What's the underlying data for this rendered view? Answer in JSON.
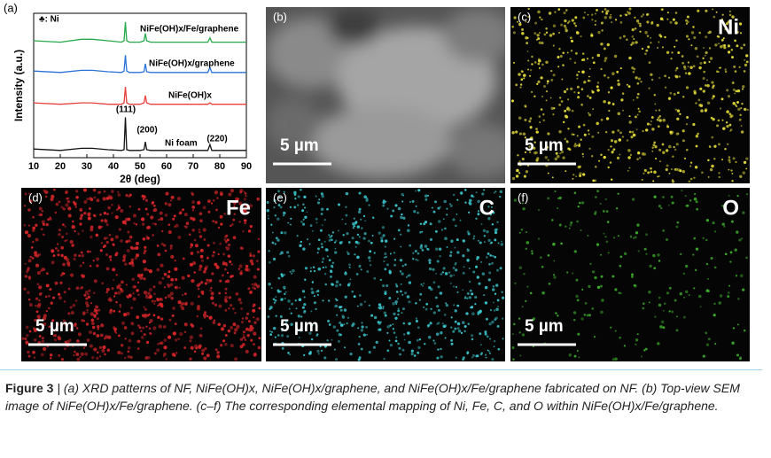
{
  "chart_data": {
    "type": "line",
    "panel_label": "(a)",
    "x_label": "2θ (deg)",
    "y_label": "Intensity (a.u.)",
    "xlim": [
      10,
      90
    ],
    "xticks": [
      10,
      20,
      30,
      40,
      50,
      60,
      70,
      80,
      90
    ],
    "ylim": [
      0,
      100
    ],
    "annotations": [
      "♣: Ni",
      "(111)",
      "(200)",
      "(220)"
    ],
    "x": [
      10,
      20,
      28,
      32,
      38,
      43,
      44,
      44.5,
      45,
      46,
      50,
      51.5,
      52,
      52.5,
      54,
      60,
      70,
      75.5,
      76.3,
      77,
      80,
      90
    ],
    "series": [
      {
        "name": "Ni foam",
        "color": "#111111",
        "values": [
          6,
          5,
          6.5,
          6.5,
          5.5,
          5,
          5.5,
          28,
          5.5,
          5,
          5,
          5.5,
          11,
          5.5,
          5,
          5,
          5,
          5,
          9,
          5,
          5,
          5
        ]
      },
      {
        "name": "NiFe(OH)x",
        "color": "#e8403c",
        "values": [
          38,
          37,
          38,
          38,
          37,
          37,
          38,
          49,
          38,
          37,
          37,
          38,
          43,
          38,
          37,
          37,
          37,
          37,
          38,
          37,
          37,
          37
        ]
      },
      {
        "name": "NiFe(OH)x/graphene",
        "color": "#2a73d6",
        "values": [
          60,
          59,
          60.5,
          60.5,
          59.5,
          59,
          60,
          71,
          60,
          59,
          59,
          59.5,
          65,
          59.5,
          59,
          59,
          59,
          59,
          62.5,
          59,
          59,
          59
        ]
      },
      {
        "name": "NiFe(OH)x/Fe/graphene",
        "color": "#27a84a",
        "values": [
          81,
          80,
          82,
          82,
          81,
          80,
          81,
          94,
          81,
          80,
          80,
          81,
          86,
          81,
          80,
          80,
          80,
          80,
          83,
          80,
          80,
          80
        ]
      }
    ]
  },
  "panels": [
    {
      "label": "(b)",
      "scale_bar": "5 µm"
    },
    {
      "label": "(c)",
      "element": "Ni",
      "color": "#e6dc3a",
      "scale_bar": "5 µm"
    },
    {
      "label": "(d)",
      "element": "Fe",
      "color": "#d8262a",
      "scale_bar": "5 µm"
    },
    {
      "label": "(e)",
      "element": "C",
      "color": "#3cc8d0",
      "scale_bar": "5 µm"
    },
    {
      "label": "(f)",
      "element": "O",
      "color": "#3cae2a",
      "scale_bar": "5 µm"
    }
  ],
  "caption": {
    "label": "Figure 3",
    "text": "| (a) XRD patterns of NF, NiFe(OH)x, NiFe(OH)x/graphene, and NiFe(OH)x/Fe/graphene fabricated on NF. (b) Top-view SEM image of NiFe(OH)x/Fe/graphene. (c–f) The corresponding elemental mapping of Ni, Fe, C, and O within NiFe(OH)x/Fe/graphene."
  }
}
